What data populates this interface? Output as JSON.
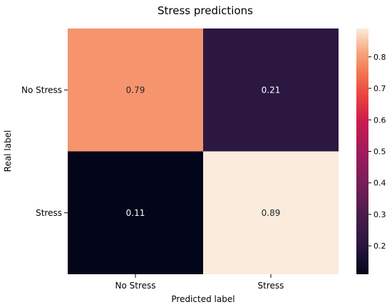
{
  "chart_data": {
    "type": "heatmap",
    "title": "Stress predictions",
    "xlabel": "Predicted label",
    "ylabel": "Real label",
    "x_categories": [
      "No Stress",
      "Stress"
    ],
    "y_categories": [
      "No Stress",
      "Stress"
    ],
    "values": [
      [
        0.79,
        0.21
      ],
      [
        0.11,
        0.89
      ]
    ],
    "cell_labels": [
      [
        "0.79",
        "0.21"
      ],
      [
        "0.11",
        "0.89"
      ]
    ],
    "colormap": "rocket",
    "colorbar": {
      "range": [
        0.11,
        0.89
      ],
      "ticks": [
        0.2,
        0.3,
        0.4,
        0.5,
        0.6,
        0.7,
        0.8
      ],
      "tick_labels": [
        "0.2",
        "0.3",
        "0.4",
        "0.5",
        "0.6",
        "0.7",
        "0.8"
      ]
    }
  }
}
